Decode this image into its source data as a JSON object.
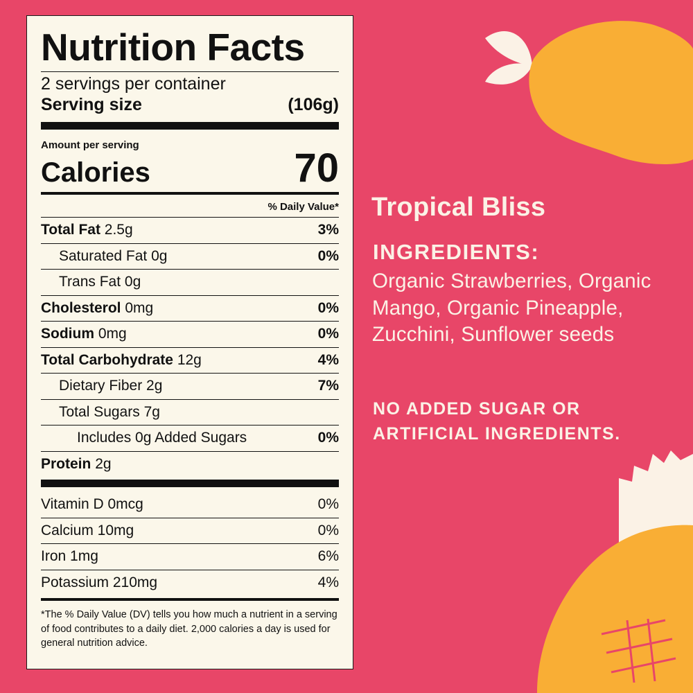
{
  "label": {
    "title": "Nutrition Facts",
    "servings": "2 servings per container",
    "serving_size_label": "Serving size",
    "serving_size_value": "(106g)",
    "amount_per_serving": "Amount per serving",
    "calories_label": "Calories",
    "calories_value": "70",
    "dv_header": "% Daily Value*",
    "nutrients": [
      {
        "name": "Total Fat",
        "amount": "2.5g",
        "dv": "3%"
      },
      {
        "name": "Saturated Fat",
        "amount": "0g",
        "dv": "0%"
      },
      {
        "name": "Trans Fat",
        "amount": "0g",
        "dv": ""
      },
      {
        "name": "Cholesterol",
        "amount": "0mg",
        "dv": "0%"
      },
      {
        "name": "Sodium",
        "amount": "0mg",
        "dv": "0%"
      },
      {
        "name": "Total Carbohydrate",
        "amount": "12g",
        "dv": "4%"
      },
      {
        "name": "Dietary Fiber",
        "amount": "2g",
        "dv": "7%"
      },
      {
        "name": "Total Sugars",
        "amount": "7g",
        "dv": ""
      },
      {
        "name": "Includes 0g Added Sugars",
        "amount": "",
        "dv": "0%"
      },
      {
        "name": "Protein",
        "amount": "2g",
        "dv": ""
      }
    ],
    "vitamins": [
      {
        "text": "Vitamin D 0mcg",
        "dv": "0%"
      },
      {
        "text": "Calcium 10mg",
        "dv": "0%"
      },
      {
        "text": "Iron 1mg",
        "dv": "6%"
      },
      {
        "text": "Potassium 210mg",
        "dv": "4%"
      }
    ],
    "footnote": "*The % Daily Value (DV) tells you how much a nutrient in a serving of food contributes to a daily diet. 2,000 calories a day is used for general nutrition advice."
  },
  "product": {
    "title": "Tropical Bliss",
    "ingredients_heading": "INGREDIENTS:",
    "ingredients": "Organic Strawberries, Organic Mango, Organic Pineapple, Zucchini, Sunflower seeds",
    "claim": "NO ADDED SUGAR OR ARTIFICIAL INGREDIENTS."
  },
  "colors": {
    "background": "#E84668",
    "fruit": "#F9AE35",
    "leaf": "#FBF2E6",
    "label_bg": "#FBF7EA"
  },
  "icons": [
    "mango-illustration",
    "pineapple-illustration"
  ]
}
